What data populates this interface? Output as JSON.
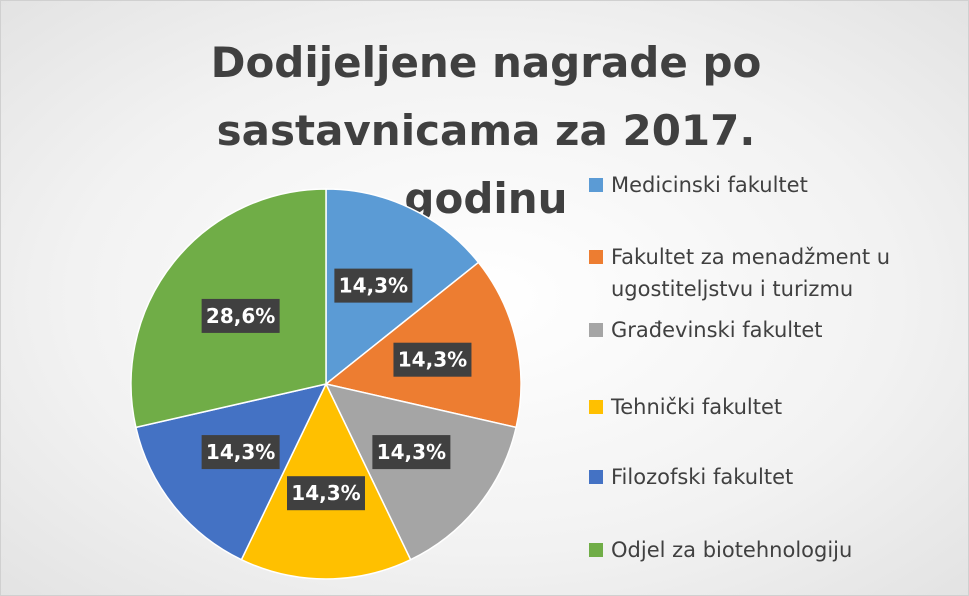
{
  "chart_data": {
    "type": "pie",
    "title": "Dodijeljene nagrade po sastavnicama za 2017. godinu",
    "categories": [
      "Medicinski fakultet",
      "Fakultet za menadžment u ugostiteljstvu i turizmu",
      "Građevinski fakultet",
      "Tehnički fakultet",
      "Filozofski fakultet",
      "Odjel za biotehnologiju"
    ],
    "values": [
      14.3,
      14.3,
      14.3,
      14.3,
      14.3,
      28.6
    ],
    "value_labels": [
      "14,3%",
      "14,3%",
      "14,3%",
      "14,3%",
      "14,3%",
      "28,6%"
    ],
    "colors": [
      "#5b9bd5",
      "#ed7d31",
      "#a5a5a5",
      "#ffc000",
      "#4472c4",
      "#70ad47"
    ],
    "legend": "right"
  }
}
